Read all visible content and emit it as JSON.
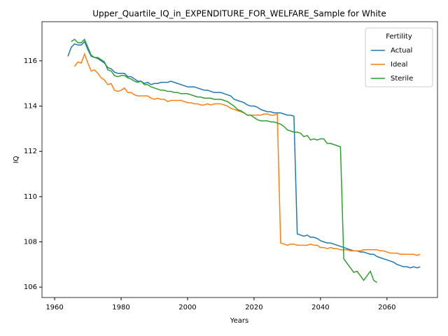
{
  "chart_data": {
    "type": "line",
    "title": "Upper_Quartile_IQ_in_EXPENDITURE_FOR_WELFARE_Sample for White",
    "xlabel": "Years",
    "ylabel": "IQ",
    "legend_title": "Fertility",
    "legend": "upper right",
    "xlim": [
      1956.2,
      2075.2
    ],
    "ylim": [
      105.54,
      117.73
    ],
    "xticks": [
      1960,
      1980,
      2000,
      2020,
      2040,
      2060
    ],
    "yticks": [
      106,
      108,
      110,
      112,
      114,
      116
    ],
    "x": [
      1964,
      1965,
      1966,
      1967,
      1968,
      1969,
      1970,
      1971,
      1972,
      1973,
      1974,
      1975,
      1976,
      1977,
      1978,
      1979,
      1980,
      1981,
      1982,
      1983,
      1984,
      1985,
      1986,
      1987,
      1988,
      1989,
      1990,
      1991,
      1992,
      1993,
      1994,
      1995,
      1996,
      1997,
      1998,
      1999,
      2000,
      2001,
      2002,
      2003,
      2004,
      2005,
      2006,
      2007,
      2008,
      2009,
      2010,
      2011,
      2012,
      2013,
      2014,
      2015,
      2016,
      2017,
      2018,
      2019,
      2020,
      2021,
      2022,
      2023,
      2024,
      2025,
      2026,
      2027,
      2028,
      2029,
      2030,
      2031,
      2032,
      2033,
      2034,
      2035,
      2036,
      2037,
      2038,
      2039,
      2040,
      2041,
      2042,
      2043,
      2044,
      2045,
      2046,
      2047,
      2048,
      2049,
      2050,
      2051,
      2052,
      2053,
      2054,
      2055,
      2056,
      2057,
      2058,
      2059,
      2060,
      2061,
      2062,
      2063,
      2064,
      2065,
      2066,
      2067,
      2068,
      2069,
      2070
    ],
    "series": [
      {
        "name": "Actual",
        "color": "#1f77b4",
        "values": [
          116.2,
          116.6,
          116.75,
          116.7,
          116.7,
          116.85,
          116.5,
          116.2,
          116.15,
          116.1,
          116.0,
          115.9,
          115.7,
          115.65,
          115.5,
          115.45,
          115.45,
          115.45,
          115.3,
          115.3,
          115.2,
          115.1,
          115.1,
          115.0,
          115.05,
          114.95,
          115.0,
          115.0,
          115.05,
          115.05,
          115.05,
          115.1,
          115.05,
          115.0,
          114.95,
          114.9,
          114.85,
          114.85,
          114.85,
          114.8,
          114.75,
          114.7,
          114.7,
          114.65,
          114.6,
          114.6,
          114.6,
          114.55,
          114.5,
          114.45,
          114.3,
          114.25,
          114.2,
          114.15,
          114.05,
          114.0,
          114.0,
          113.95,
          113.85,
          113.8,
          113.75,
          113.75,
          113.7,
          113.7,
          113.7,
          113.65,
          113.6,
          113.6,
          113.55,
          108.35,
          108.3,
          108.25,
          108.3,
          108.2,
          108.2,
          108.15,
          108.05,
          108.0,
          107.95,
          107.95,
          107.9,
          107.85,
          107.8,
          107.75,
          107.7,
          107.65,
          107.6,
          107.6,
          107.55,
          107.55,
          107.5,
          107.45,
          107.45,
          107.35,
          107.3,
          107.25,
          107.2,
          107.15,
          107.1,
          107.0,
          106.95,
          106.9,
          106.9,
          106.85,
          106.9,
          106.85,
          106.9
        ]
      },
      {
        "name": "Ideal",
        "color": "#ff7f0e",
        "values": [
          null,
          null,
          115.75,
          115.95,
          115.9,
          116.3,
          115.9,
          115.55,
          115.6,
          115.45,
          115.25,
          115.15,
          114.95,
          115.0,
          114.7,
          114.65,
          114.7,
          114.8,
          114.6,
          114.6,
          114.5,
          114.45,
          114.45,
          114.45,
          114.45,
          114.35,
          114.3,
          114.35,
          114.3,
          114.3,
          114.2,
          114.25,
          114.25,
          114.25,
          114.25,
          114.2,
          114.15,
          114.15,
          114.1,
          114.1,
          114.05,
          114.05,
          114.1,
          114.05,
          114.1,
          114.1,
          114.1,
          114.05,
          114.0,
          113.9,
          113.85,
          113.8,
          113.75,
          113.7,
          113.6,
          113.6,
          113.6,
          113.6,
          113.6,
          113.65,
          113.65,
          113.6,
          113.6,
          113.65,
          107.95,
          107.9,
          107.85,
          107.9,
          107.9,
          107.85,
          107.85,
          107.85,
          107.85,
          107.9,
          107.85,
          107.85,
          107.75,
          107.75,
          107.7,
          107.75,
          107.7,
          107.7,
          107.65,
          107.65,
          107.65,
          107.6,
          107.6,
          107.6,
          107.6,
          107.65,
          107.65,
          107.65,
          107.65,
          107.65,
          107.6,
          107.6,
          107.55,
          107.5,
          107.5,
          107.5,
          107.45,
          107.45,
          107.45,
          107.45,
          107.45,
          107.4,
          107.45
        ]
      },
      {
        "name": "Sterile",
        "color": "#2ca02c",
        "values": [
          null,
          116.85,
          116.95,
          116.8,
          116.8,
          116.95,
          116.6,
          116.25,
          116.15,
          116.15,
          116.05,
          115.95,
          115.6,
          115.55,
          115.35,
          115.3,
          115.35,
          115.35,
          115.25,
          115.2,
          115.1,
          115.05,
          115.1,
          114.95,
          114.95,
          114.85,
          114.8,
          114.75,
          114.7,
          114.7,
          114.65,
          114.65,
          114.6,
          114.6,
          114.55,
          114.55,
          114.55,
          114.5,
          114.45,
          114.4,
          114.4,
          114.35,
          114.35,
          114.35,
          114.3,
          114.3,
          114.3,
          114.25,
          114.2,
          114.1,
          114.0,
          113.85,
          113.8,
          113.7,
          113.6,
          113.6,
          113.5,
          113.4,
          113.35,
          113.35,
          113.35,
          113.3,
          113.3,
          113.25,
          113.2,
          113.1,
          112.95,
          112.9,
          112.85,
          112.85,
          112.8,
          112.65,
          112.7,
          112.5,
          112.55,
          112.5,
          112.55,
          112.55,
          112.35,
          112.35,
          112.3,
          112.25,
          112.2,
          107.25,
          107.05,
          106.85,
          106.65,
          106.7,
          106.5,
          106.3,
          106.5,
          106.7,
          106.3,
          106.2,
          null,
          null,
          null,
          null,
          null,
          null,
          null,
          null,
          null,
          null,
          null,
          null,
          null
        ]
      }
    ]
  }
}
